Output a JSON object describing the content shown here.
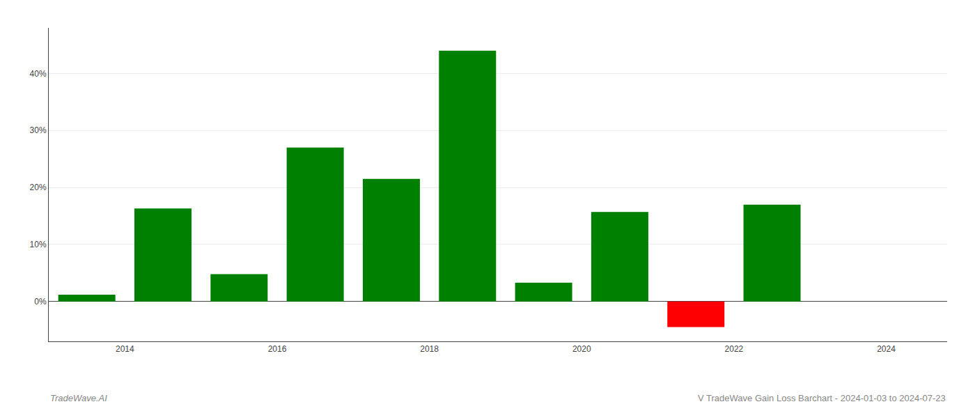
{
  "chart_data": {
    "type": "bar",
    "x": [
      2013.5,
      2014.5,
      2015.5,
      2016.5,
      2017.5,
      2018.5,
      2019.5,
      2020.5,
      2021.5,
      2022.5,
      2023.5
    ],
    "values": [
      1.2,
      16.3,
      4.8,
      27.0,
      21.5,
      44.0,
      3.3,
      15.7,
      -4.5,
      17.0,
      0.0
    ],
    "colors": [
      "#008000",
      "#008000",
      "#008000",
      "#008000",
      "#008000",
      "#008000",
      "#008000",
      "#008000",
      "#ff0000",
      "#008000",
      "#008000"
    ],
    "xlim": [
      2013.0,
      2024.8
    ],
    "xticks": [
      2014,
      2016,
      2018,
      2020,
      2022,
      2024
    ],
    "ylim": [
      -7,
      48
    ],
    "yticks": [
      {
        "value": 0,
        "label": "0%"
      },
      {
        "value": 10,
        "label": "10%"
      },
      {
        "value": 20,
        "label": "20%"
      },
      {
        "value": 30,
        "label": "30%"
      },
      {
        "value": 40,
        "label": "40%"
      }
    ],
    "grid": true,
    "annotations": [
      "TradeWave.AI",
      "V TradeWave Gain Loss Barchart - 2024-01-03 to 2024-07-23"
    ]
  }
}
